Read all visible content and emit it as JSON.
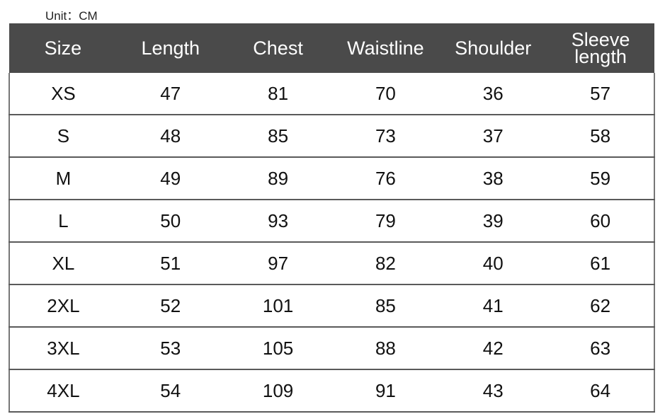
{
  "unit_label": "Unit：CM",
  "chart_data": {
    "type": "table",
    "columns": [
      "Size",
      "Length",
      "Chest",
      "Waistline",
      "Shoulder",
      "Sleeve length"
    ],
    "rows": [
      [
        "XS",
        "47",
        "81",
        "70",
        "36",
        "57"
      ],
      [
        "S",
        "48",
        "85",
        "73",
        "37",
        "58"
      ],
      [
        "M",
        "49",
        "89",
        "76",
        "38",
        "59"
      ],
      [
        "L",
        "50",
        "93",
        "79",
        "39",
        "60"
      ],
      [
        "XL",
        "51",
        "97",
        "82",
        "40",
        "61"
      ],
      [
        "2XL",
        "52",
        "101",
        "85",
        "41",
        "62"
      ],
      [
        "3XL",
        "53",
        "105",
        "88",
        "42",
        "63"
      ],
      [
        "4XL",
        "54",
        "109",
        "91",
        "43",
        "64"
      ]
    ],
    "header_color": "#4a4a4a"
  }
}
